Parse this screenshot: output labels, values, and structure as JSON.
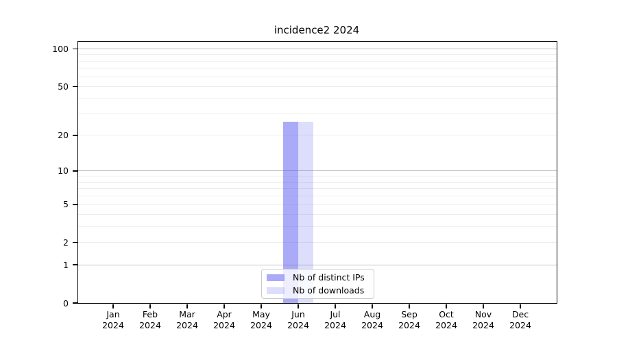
{
  "figure": {
    "background": "#ffffff"
  },
  "chart_data": {
    "type": "bar",
    "title": "incidence2 2024",
    "categories": [
      "Jan",
      "Feb",
      "Mar",
      "Apr",
      "May",
      "Jun",
      "Jul",
      "Aug",
      "Sep",
      "Oct",
      "Nov",
      "Dec"
    ],
    "x_axis": {
      "year_sublabel": "2024"
    },
    "y_axis": {
      "scale": "log1p",
      "ymax": 114,
      "major_ticks": [
        0,
        1,
        2,
        5,
        10,
        20,
        50,
        100
      ],
      "grid_dark_values": [
        1,
        10,
        100
      ],
      "grid_light_values": [
        2,
        3,
        4,
        5,
        6,
        7,
        8,
        9,
        20,
        30,
        40,
        50,
        60,
        70,
        80,
        90
      ]
    },
    "series": [
      {
        "name": "Nb of distinct IPs",
        "color": "rgba(85,85,240,0.5)",
        "values": [
          0,
          0,
          0,
          0,
          0,
          26,
          0,
          0,
          0,
          0,
          0,
          0
        ]
      },
      {
        "name": "Nb of downloads",
        "color": "rgba(85,85,240,0.2)",
        "values": [
          0,
          0,
          0,
          0,
          0,
          26,
          0,
          0,
          0,
          0,
          0,
          0
        ]
      }
    ],
    "legend": {
      "position": "bottom-center"
    },
    "colors": {
      "axis": "#000000",
      "grid_dark": "#c3c3c3",
      "grid_light": "#ededed",
      "legend_border": "#cccccc",
      "legend_bg": "rgba(255,255,255,0.8)"
    }
  }
}
